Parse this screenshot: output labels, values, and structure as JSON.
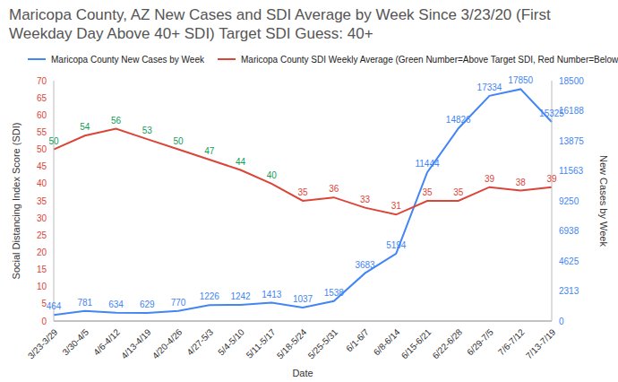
{
  "chart_data": {
    "type": "line",
    "title": "Maricopa County, AZ New Cases and SDI Average by Week Since 3/23/20 (First Weekday Day Above 40+ SDI) Target SDI Guess: 40+",
    "x_label": "Date",
    "y_label": "Social Distancing Index Score (SDI)",
    "y2_label": "New Cases by Week",
    "categories": [
      "3/23-3/29",
      "3/30-4/5",
      "4/6-4/12",
      "4/13-4/19",
      "4/20-4/26",
      "4/27-5/3",
      "5/4-5/10",
      "5/11-5/17",
      "5/18-5/24",
      "5/25-5/31",
      "6/1-6/7",
      "6/8-6/14",
      "6/15-6/21",
      "6/22-6/28",
      "6/29-7/5",
      "7/6-7/12",
      "7/13-7/19"
    ],
    "series": [
      {
        "name": "Maricopa County New Cases by Week",
        "color": "#4285f4",
        "axis": "y2",
        "values": [
          464,
          781,
          634,
          629,
          770,
          1226,
          1242,
          1413,
          1037,
          1538,
          3683,
          5194,
          11444,
          14826,
          17334,
          17850,
          15325
        ]
      },
      {
        "name": "Maricopa County SDI Weekly Average (Green Number=Above Target SDI, Red Number=Below Target SDI)",
        "color": "#db4437",
        "colors": [
          "#0f9d58",
          "#0f9d58",
          "#0f9d58",
          "#0f9d58",
          "#0f9d58",
          "#0f9d58",
          "#0f9d58",
          "#0f9d58",
          "#db4437",
          "#db4437",
          "#db4437",
          "#db4437",
          "#db4437",
          "#db4437",
          "#db4437",
          "#db4437",
          "#db4437"
        ],
        "values": [
          50,
          54,
          56,
          53,
          50,
          47,
          44,
          40,
          35,
          36,
          33,
          31,
          35,
          35,
          39,
          38,
          39
        ]
      }
    ],
    "ylim": [
      0,
      70
    ],
    "yticks": [
      0,
      5,
      10,
      15,
      20,
      25,
      30,
      35,
      40,
      45,
      50,
      55,
      60,
      65,
      70
    ],
    "y2lim": [
      0,
      18500
    ],
    "y2ticks": [
      0,
      2313,
      4625,
      6938,
      9250,
      11563,
      13875,
      16188,
      18500
    ],
    "grid": false,
    "legend": "top",
    "data_labels": true,
    "marker": "none",
    "line_style": "solid"
  }
}
